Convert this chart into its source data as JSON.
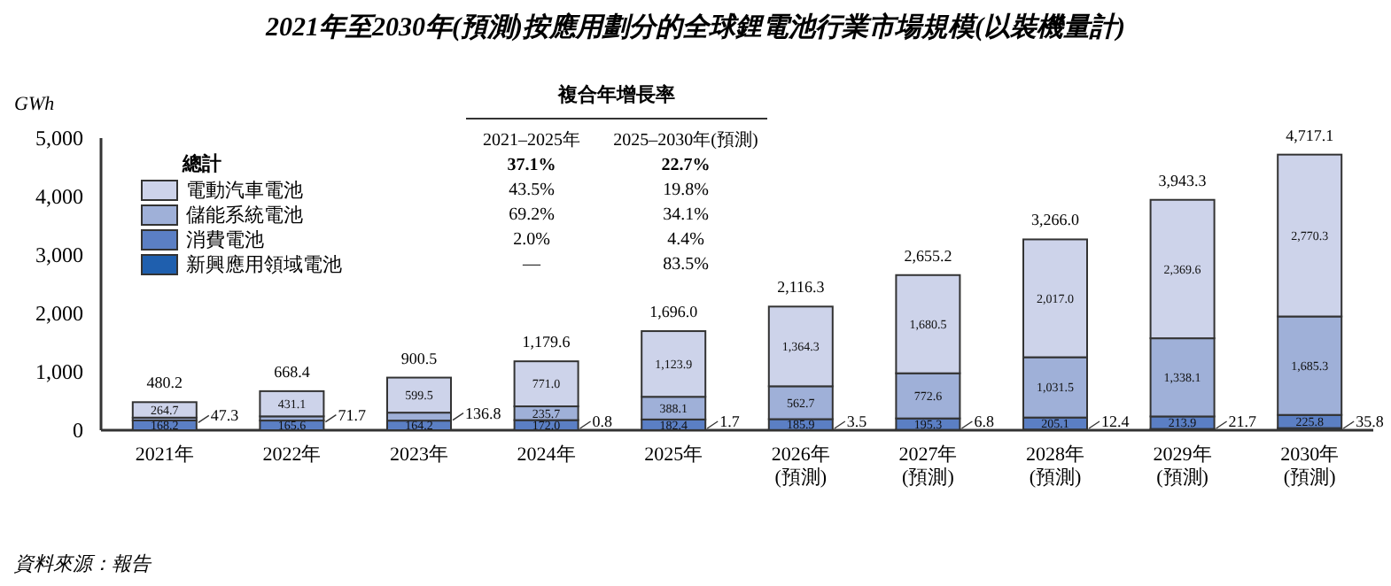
{
  "chart_data": {
    "type": "bar",
    "stacked": true,
    "title": "2021年至2030年(預測)按應用劃分的全球鋰電池行業市場規模(以裝機量計)",
    "ylabel": "GWh",
    "legend_title": "總計",
    "legend": "top left",
    "categories": [
      "2021年",
      "2022年",
      "2023年",
      "2024年",
      "2025年",
      "2026年\n(預測)",
      "2027年\n(預測)",
      "2028年\n(預測)",
      "2029年\n(預測)",
      "2030年\n(預測)"
    ],
    "series": [
      {
        "name": "新興應用領域電池",
        "color": "#1f5fae",
        "values": [
          null,
          null,
          null,
          0.8,
          1.7,
          3.5,
          6.8,
          12.4,
          21.7,
          35.8
        ],
        "value_labels": [
          null,
          null,
          null,
          "0.8",
          "1.7",
          "3.5",
          "6.8",
          "12.4",
          "21.7",
          "35.8"
        ]
      },
      {
        "name": "消費電池",
        "color": "#5b7fc4",
        "values": [
          168.2,
          165.6,
          164.2,
          172.0,
          182.4,
          185.9,
          195.3,
          205.1,
          213.9,
          225.8
        ],
        "value_labels": [
          "168.2",
          "165.6",
          "164.2",
          "172.0",
          "182.4",
          "185.9",
          "195.3",
          "205.1",
          "213.9",
          "225.8"
        ]
      },
      {
        "name": "儲能系統電池",
        "color": "#9fb0d8",
        "values": [
          47.3,
          71.7,
          136.8,
          235.7,
          388.1,
          562.7,
          772.6,
          1031.5,
          1338.1,
          1685.3
        ],
        "value_labels": [
          "47.3",
          "71.7",
          "136.8",
          "235.7",
          "388.1",
          "562.7",
          "772.6",
          "1,031.5",
          "1,338.1",
          "1,685.3"
        ]
      },
      {
        "name": "電動汽車電池",
        "color": "#cdd3ea",
        "values": [
          264.7,
          431.1,
          599.5,
          771.0,
          1123.9,
          1364.3,
          1680.5,
          2017.0,
          2369.6,
          2770.3
        ],
        "value_labels": [
          "264.7",
          "431.1",
          "599.5",
          "771.0",
          "1,123.9",
          "1,364.3",
          "1,680.5",
          "2,017.0",
          "2,369.6",
          "2,770.3"
        ]
      }
    ],
    "totals": [
      "480.2",
      "668.4",
      "900.5",
      "1,179.6",
      "1,696.0",
      "2,116.3",
      "2,655.2",
      "3,266.0",
      "3,943.3",
      "4,717.1"
    ],
    "ylim": [
      0,
      5000
    ],
    "yticks": [
      0,
      {
        "value": 1000,
        "label": "1,000"
      },
      {
        "value": 2000,
        "label": "2,000"
      },
      {
        "value": 3000,
        "label": "3,000"
      },
      {
        "value": 4000,
        "label": "4,000"
      },
      {
        "value": 5000,
        "label": "5,000"
      }
    ],
    "annotations": [
      "複合年增長率",
      "2021–2025年",
      "2025–2030年(預測)",
      "37.1%",
      "22.7%",
      "43.5%",
      "19.8%",
      "69.2%",
      "34.1%",
      "2.0%",
      "4.4%",
      "—",
      "83.5%",
      "資料來源：報告"
    ]
  }
}
